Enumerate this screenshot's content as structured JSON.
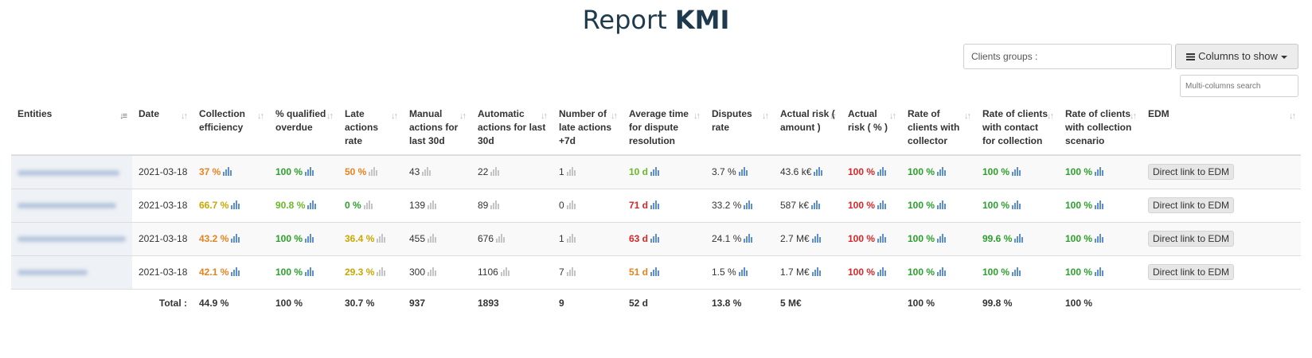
{
  "title": {
    "prefix": "Report",
    "strong": "KMI"
  },
  "controls": {
    "clients_groups_label": "Clients groups :",
    "columns_label": "Columns to show",
    "search_placeholder": "Multi-columns search"
  },
  "colors": {
    "orange": "#e8821e",
    "green": "#2ca02c",
    "lightgreen": "#6bb82a",
    "olive": "#c8a800",
    "red": "#d62728",
    "text": "#333333",
    "bar_blue": "#5b8fd1",
    "bar_grey": "#c4c4c4"
  },
  "headers": [
    "Entities",
    "Date",
    "Collection efficiency",
    "% qualified overdue",
    "Late actions rate",
    "Manual actions for last 30d",
    "Automatic actions for last 30d",
    "Number of late actions +7d",
    "Average time for dispute resolution",
    "Disputes rate",
    "Actual risk ( amount )",
    "Actual risk ( % )",
    "Rate of clients with collector",
    "Rate of clients with contact for collection",
    "Rate of clients with collection scenario",
    "EDM"
  ],
  "rows": [
    {
      "date": "2021-03-18",
      "edm": "Direct link to EDM",
      "cells": [
        {
          "v": "37 %",
          "c": "orange",
          "b": "blue"
        },
        {
          "v": "100 %",
          "c": "green",
          "b": "blue"
        },
        {
          "v": "50 %",
          "c": "orange",
          "b": "grey"
        },
        {
          "v": "43",
          "c": "text",
          "b": "grey"
        },
        {
          "v": "22",
          "c": "text",
          "b": "grey"
        },
        {
          "v": "1",
          "c": "text",
          "b": "grey"
        },
        {
          "v": "10 d",
          "c": "lightgreen",
          "b": "blue"
        },
        {
          "v": "3.7 %",
          "c": "text",
          "b": "blue"
        },
        {
          "v": "43.6 k€",
          "c": "text",
          "b": "blue"
        },
        {
          "v": "100 %",
          "c": "red",
          "b": "blue"
        },
        {
          "v": "100 %",
          "c": "green",
          "b": "blue"
        },
        {
          "v": "100 %",
          "c": "green",
          "b": "blue"
        },
        {
          "v": "100 %",
          "c": "green",
          "b": "blue"
        }
      ]
    },
    {
      "date": "2021-03-18",
      "edm": "Direct link to EDM",
      "cells": [
        {
          "v": "66.7 %",
          "c": "olive",
          "b": "blue"
        },
        {
          "v": "90.8 %",
          "c": "lightgreen",
          "b": "blue"
        },
        {
          "v": "0 %",
          "c": "green",
          "b": "grey"
        },
        {
          "v": "139",
          "c": "text",
          "b": "grey"
        },
        {
          "v": "89",
          "c": "text",
          "b": "grey"
        },
        {
          "v": "0",
          "c": "text",
          "b": "grey"
        },
        {
          "v": "71 d",
          "c": "red",
          "b": "blue"
        },
        {
          "v": "33.2 %",
          "c": "text",
          "b": "blue"
        },
        {
          "v": "587 k€",
          "c": "text",
          "b": "blue"
        },
        {
          "v": "100 %",
          "c": "red",
          "b": "blue"
        },
        {
          "v": "100 %",
          "c": "green",
          "b": "blue"
        },
        {
          "v": "100 %",
          "c": "green",
          "b": "blue"
        },
        {
          "v": "100 %",
          "c": "green",
          "b": "blue"
        }
      ]
    },
    {
      "date": "2021-03-18",
      "edm": "Direct link to EDM",
      "cells": [
        {
          "v": "43.2 %",
          "c": "orange",
          "b": "blue"
        },
        {
          "v": "100 %",
          "c": "green",
          "b": "blue"
        },
        {
          "v": "36.4 %",
          "c": "olive",
          "b": "grey"
        },
        {
          "v": "455",
          "c": "text",
          "b": "grey"
        },
        {
          "v": "676",
          "c": "text",
          "b": "grey"
        },
        {
          "v": "1",
          "c": "text",
          "b": "grey"
        },
        {
          "v": "63 d",
          "c": "red",
          "b": "blue"
        },
        {
          "v": "24.1 %",
          "c": "text",
          "b": "blue"
        },
        {
          "v": "2.7 M€",
          "c": "text",
          "b": "blue"
        },
        {
          "v": "100 %",
          "c": "red",
          "b": "blue"
        },
        {
          "v": "100 %",
          "c": "green",
          "b": "blue"
        },
        {
          "v": "99.6 %",
          "c": "green",
          "b": "blue"
        },
        {
          "v": "100 %",
          "c": "green",
          "b": "blue"
        }
      ]
    },
    {
      "date": "2021-03-18",
      "edm": "Direct link to EDM",
      "cells": [
        {
          "v": "42.1 %",
          "c": "orange",
          "b": "blue"
        },
        {
          "v": "100 %",
          "c": "green",
          "b": "blue"
        },
        {
          "v": "29.3 %",
          "c": "olive",
          "b": "grey"
        },
        {
          "v": "300",
          "c": "text",
          "b": "grey"
        },
        {
          "v": "1106",
          "c": "text",
          "b": "grey"
        },
        {
          "v": "7",
          "c": "text",
          "b": "grey"
        },
        {
          "v": "51 d",
          "c": "orange",
          "b": "blue"
        },
        {
          "v": "1.5 %",
          "c": "text",
          "b": "blue"
        },
        {
          "v": "1.7 M€",
          "c": "text",
          "b": "blue"
        },
        {
          "v": "100 %",
          "c": "red",
          "b": "blue"
        },
        {
          "v": "100 %",
          "c": "green",
          "b": "blue"
        },
        {
          "v": "100 %",
          "c": "green",
          "b": "blue"
        },
        {
          "v": "100 %",
          "c": "green",
          "b": "blue"
        }
      ]
    }
  ],
  "totals": {
    "label": "Total :",
    "values": [
      "44.9 %",
      "100 %",
      "30.7 %",
      "937",
      "1893",
      "9",
      "52 d",
      "13.8 %",
      "5 M€",
      "",
      "100 %",
      "99.8 %",
      "100 %"
    ]
  }
}
